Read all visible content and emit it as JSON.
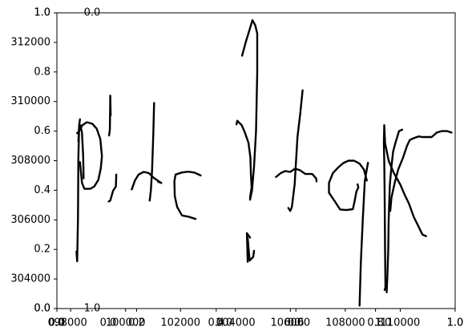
{
  "chart_data": {
    "type": "line",
    "title": "",
    "xlabel": "",
    "ylabel": "",
    "grid": false,
    "legend": "none",
    "ink_color": "#000000",
    "axes": [
      {
        "name": "primary",
        "xlim": [
          0.0,
          1.0
        ],
        "ylim": [
          0.0,
          1.0
        ],
        "xticks": [
          0.0,
          0.2,
          0.4,
          0.6,
          0.8,
          1.0
        ],
        "yticks": [
          0.0,
          0.2,
          0.4,
          0.6,
          0.8,
          1.0
        ],
        "xtick_labels": [
          "0.0",
          "0.2",
          "0.4",
          "0.6",
          "0.8",
          "1.0"
        ],
        "ytick_labels": [
          "0.0",
          "0.2",
          "0.4",
          "0.6",
          "0.8",
          "1.0"
        ]
      },
      {
        "name": "overlay-y",
        "ylim": [
          303000,
          313000
        ],
        "yticks": [
          304000,
          306000,
          308000,
          310000,
          312000
        ],
        "ytick_labels": [
          "304000",
          "306000",
          "308000",
          "310000",
          "312000"
        ]
      },
      {
        "name": "overlay-x",
        "xlim": [
          97500,
          112000
        ],
        "xticks": [
          98000,
          100000,
          102000,
          104000,
          106000,
          108000,
          110000
        ],
        "xtick_labels": [
          "98000",
          "100000",
          "102000",
          "104000",
          "106000",
          "108000",
          "110000"
        ]
      },
      {
        "name": "stray-labels",
        "labels": [
          {
            "text": "0.0",
            "at": [
              0.0,
              0.0
            ]
          },
          {
            "text": "0.0",
            "at": [
              0.0,
              0.0
            ]
          },
          {
            "text": "1.0",
            "at": [
              0.0,
              0.0
            ]
          },
          {
            "text": "0.0",
            "at": [
              0.0,
              0.0
            ]
          },
          {
            "text": "1.0",
            "at": [
              0.0,
              0.0
            ]
          },
          {
            "text": "0.0",
            "at": [
              0.0,
              0.0
            ]
          },
          {
            "text": "0.0",
            "at": [
              0.0,
              0.0
            ]
          },
          {
            "text": "0.0",
            "at": [
              0.0,
              0.0
            ]
          },
          {
            "text": "1.0",
            "at": [
              0.0,
              0.0
            ]
          },
          {
            "text": "1.0",
            "at": [
              0.0,
              0.0
            ]
          }
        ]
      }
    ],
    "series": [
      {
        "points": [
          [
            0.049,
            0.193
          ],
          [
            0.051,
            0.16
          ],
          [
            0.052,
            0.235
          ],
          [
            0.053,
            0.305
          ],
          [
            0.054,
            0.51
          ],
          [
            0.056,
            0.62
          ],
          [
            0.058,
            0.64
          ]
        ]
      },
      {
        "points": [
          [
            0.054,
            0.565
          ],
          [
            0.056,
            0.62
          ],
          [
            0.059,
            0.62
          ],
          [
            0.063,
            0.595
          ],
          [
            0.066,
            0.515
          ],
          [
            0.067,
            0.44
          ]
        ]
      },
      {
        "points": [
          [
            0.051,
            0.593
          ],
          [
            0.056,
            0.6
          ],
          [
            0.064,
            0.62
          ],
          [
            0.075,
            0.63
          ],
          [
            0.089,
            0.625
          ],
          [
            0.1,
            0.608
          ],
          [
            0.109,
            0.573
          ],
          [
            0.113,
            0.515
          ],
          [
            0.11,
            0.473
          ],
          [
            0.104,
            0.435
          ],
          [
            0.094,
            0.413
          ],
          [
            0.084,
            0.405
          ],
          [
            0.069,
            0.405
          ],
          [
            0.063,
            0.425
          ],
          [
            0.058,
            0.495
          ]
        ]
      },
      {
        "points": [
          [
            0.135,
            0.653
          ],
          [
            0.134,
            0.72
          ],
          [
            0.133,
            0.605
          ],
          [
            0.131,
            0.585
          ]
        ]
      },
      {
        "points": [
          [
            0.149,
            0.453
          ],
          [
            0.148,
            0.413
          ],
          [
            0.141,
            0.398
          ],
          [
            0.136,
            0.375
          ],
          [
            0.134,
            0.365
          ],
          [
            0.13,
            0.362
          ]
        ]
      },
      {
        "points": [
          [
            0.244,
            0.695
          ],
          [
            0.242,
            0.59
          ],
          [
            0.239,
            0.47
          ],
          [
            0.236,
            0.4
          ],
          [
            0.233,
            0.365
          ]
        ]
      },
      {
        "points": [
          [
            0.188,
            0.403
          ],
          [
            0.196,
            0.433
          ],
          [
            0.205,
            0.453
          ],
          [
            0.218,
            0.462
          ],
          [
            0.231,
            0.458
          ],
          [
            0.243,
            0.442
          ],
          [
            0.253,
            0.433
          ],
          [
            0.262,
            0.425
          ]
        ]
      },
      {
        "points": [
          [
            0.254,
            0.429
          ],
          [
            0.262,
            0.425
          ]
        ]
      },
      {
        "points": [
          [
            0.361,
            0.45
          ],
          [
            0.345,
            0.46
          ],
          [
            0.329,
            0.463
          ],
          [
            0.313,
            0.46
          ],
          [
            0.298,
            0.453
          ],
          [
            0.295,
            0.43
          ],
          [
            0.296,
            0.38
          ],
          [
            0.302,
            0.343
          ],
          [
            0.314,
            0.315
          ],
          [
            0.332,
            0.31
          ],
          [
            0.348,
            0.303
          ]
        ]
      },
      {
        "points": [
          [
            0.465,
            0.855
          ],
          [
            0.475,
            0.905
          ],
          [
            0.483,
            0.94
          ],
          [
            0.491,
            0.975
          ],
          [
            0.498,
            0.958
          ],
          [
            0.503,
            0.93
          ],
          [
            0.503,
            0.8
          ],
          [
            0.5,
            0.6
          ],
          [
            0.495,
            0.48
          ],
          [
            0.49,
            0.4
          ],
          [
            0.485,
            0.368
          ]
        ]
      },
      {
        "points": [
          [
            0.451,
            0.623
          ],
          [
            0.453,
            0.635
          ],
          [
            0.464,
            0.62
          ],
          [
            0.472,
            0.595
          ],
          [
            0.481,
            0.56
          ],
          [
            0.486,
            0.51
          ],
          [
            0.487,
            0.46
          ],
          [
            0.489,
            0.41
          ],
          [
            0.485,
            0.375
          ]
        ]
      },
      {
        "points": [
          [
            0.479,
            0.158
          ],
          [
            0.478,
            0.208
          ],
          [
            0.477,
            0.255
          ],
          [
            0.485,
            0.24
          ]
        ]
      },
      {
        "points": [
          [
            0.479,
            0.238
          ],
          [
            0.484,
            0.162
          ],
          [
            0.493,
            0.175
          ],
          [
            0.495,
            0.195
          ]
        ]
      },
      {
        "points": [
          [
            0.617,
            0.738
          ],
          [
            0.611,
            0.66
          ],
          [
            0.604,
            0.58
          ],
          [
            0.597,
            0.42
          ],
          [
            0.59,
            0.343
          ],
          [
            0.586,
            0.33
          ],
          [
            0.581,
            0.34
          ]
        ]
      },
      {
        "points": [
          [
            0.55,
            0.445
          ],
          [
            0.562,
            0.458
          ],
          [
            0.573,
            0.465
          ],
          [
            0.586,
            0.462
          ],
          [
            0.598,
            0.473
          ],
          [
            0.61,
            0.468
          ],
          [
            0.624,
            0.455
          ],
          [
            0.641,
            0.455
          ],
          [
            0.651,
            0.44
          ],
          [
            0.652,
            0.43
          ]
        ]
      },
      {
        "points": [
          [
            0.755,
            0.42
          ],
          [
            0.757,
            0.41
          ],
          [
            0.752,
            0.395
          ],
          [
            0.747,
            0.36
          ],
          [
            0.743,
            0.336
          ],
          [
            0.727,
            0.333
          ],
          [
            0.711,
            0.335
          ],
          [
            0.698,
            0.362
          ],
          [
            0.683,
            0.392
          ],
          [
            0.683,
            0.425
          ],
          [
            0.693,
            0.458
          ],
          [
            0.707,
            0.478
          ],
          [
            0.719,
            0.492
          ],
          [
            0.732,
            0.5
          ],
          [
            0.746,
            0.5
          ],
          [
            0.76,
            0.49
          ],
          [
            0.771,
            0.47
          ],
          [
            0.778,
            0.433
          ]
        ]
      },
      {
        "points": [
          [
            0.781,
            0.493
          ],
          [
            0.777,
            0.463
          ],
          [
            0.773,
            0.43
          ],
          [
            0.768,
            0.3
          ],
          [
            0.763,
            0.15
          ],
          [
            0.761,
            0.055
          ],
          [
            0.76,
            0.01
          ]
        ]
      },
      {
        "points": [
          [
            0.823,
            0.063
          ],
          [
            0.825,
            0.073
          ],
          [
            0.824,
            0.2
          ],
          [
            0.823,
            0.385
          ],
          [
            0.822,
            0.5
          ],
          [
            0.821,
            0.56
          ],
          [
            0.822,
            0.62
          ],
          [
            0.824,
            0.56
          ],
          [
            0.833,
            0.5
          ],
          [
            0.846,
            0.458
          ],
          [
            0.862,
            0.42
          ],
          [
            0.873,
            0.385
          ],
          [
            0.884,
            0.355
          ],
          [
            0.896,
            0.31
          ],
          [
            0.907,
            0.28
          ],
          [
            0.918,
            0.25
          ],
          [
            0.927,
            0.245
          ]
        ]
      },
      {
        "points": [
          [
            0.828,
            0.055
          ],
          [
            0.83,
            0.115
          ],
          [
            0.832,
            0.2
          ],
          [
            0.833,
            0.3
          ],
          [
            0.836,
            0.42
          ],
          [
            0.84,
            0.48
          ],
          [
            0.844,
            0.53
          ],
          [
            0.85,
            0.56
          ],
          [
            0.859,
            0.6
          ],
          [
            0.867,
            0.605
          ]
        ]
      },
      {
        "points": [
          [
            0.837,
            0.33
          ],
          [
            0.84,
            0.375
          ],
          [
            0.848,
            0.425
          ],
          [
            0.857,
            0.47
          ],
          [
            0.869,
            0.51
          ],
          [
            0.879,
            0.55
          ],
          [
            0.886,
            0.57
          ],
          [
            0.894,
            0.575
          ],
          [
            0.908,
            0.582
          ],
          [
            0.918,
            0.58
          ],
          [
            0.929,
            0.58
          ],
          [
            0.941,
            0.58
          ],
          [
            0.954,
            0.595
          ],
          [
            0.966,
            0.6
          ],
          [
            0.98,
            0.6
          ],
          [
            0.991,
            0.595
          ]
        ]
      }
    ]
  }
}
